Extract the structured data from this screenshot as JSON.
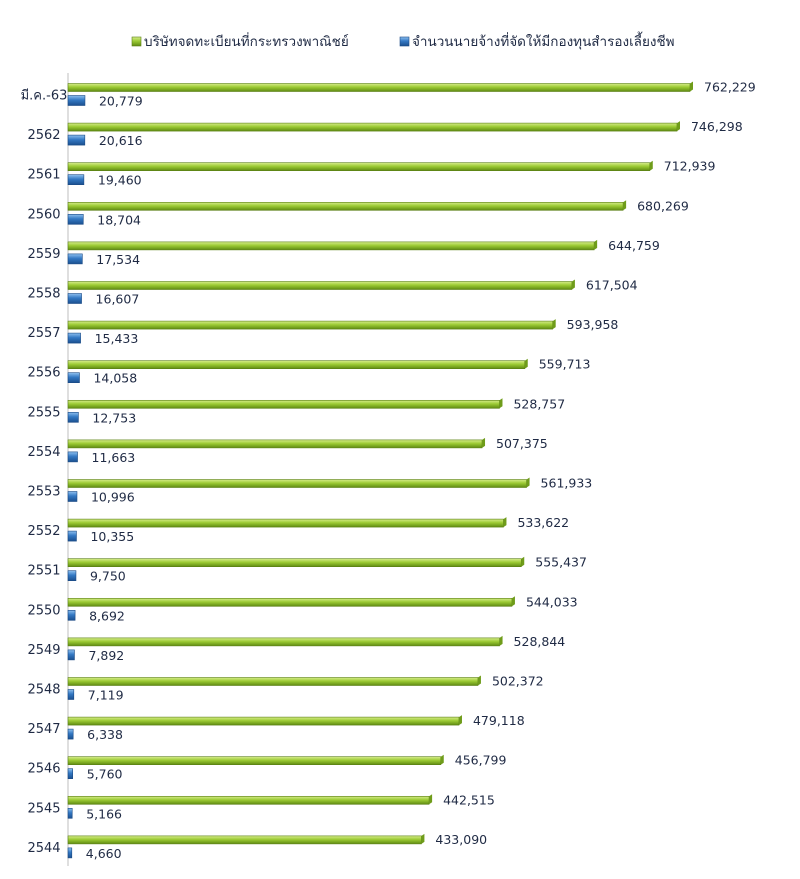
{
  "chart_data": {
    "type": "bar",
    "orientation": "horizontal",
    "title": "",
    "xlabel": "",
    "ylabel": "",
    "grid": false,
    "legend_position": "top",
    "categories": [
      "มี.ค.-63",
      "2562",
      "2561",
      "2560",
      "2559",
      "2558",
      "2557",
      "2556",
      "2555",
      "2554",
      "2553",
      "2552",
      "2551",
      "2550",
      "2549",
      "2548",
      "2547",
      "2546",
      "2545",
      "2544"
    ],
    "series": [
      {
        "name": "บริษัทจดทะเบียนที่กระทรวงพาณิชย์",
        "color": "#8dbb2a",
        "values": [
          762229,
          746298,
          712939,
          680269,
          644759,
          617504,
          593958,
          559713,
          528757,
          507375,
          561933,
          533622,
          555437,
          544033,
          528844,
          502372,
          479118,
          456799,
          442515,
          433090
        ],
        "labels": [
          "762,229",
          "746,298",
          "712,939",
          "680,269",
          "644,759",
          "617,504",
          "593,958",
          "559,713",
          "528,757",
          "507,375",
          "561,933",
          "533,622",
          "555,437",
          "544,033",
          "528,844",
          "502,372",
          "479,118",
          "456,799",
          "442,515",
          "433,090"
        ]
      },
      {
        "name": "จำนวนนายจ้างที่จัดให้มีกองทุนสำรองเลี้ยงชีพ",
        "color": "#2e6fb8",
        "values": [
          20779,
          20616,
          19460,
          18704,
          17534,
          16607,
          15433,
          14058,
          12753,
          11663,
          10996,
          10355,
          9750,
          8692,
          7892,
          7119,
          6338,
          5760,
          5166,
          4660
        ],
        "labels": [
          "20,779",
          "20,616",
          "19,460",
          "18,704",
          "17,534",
          "16,607",
          "15,433",
          "14,058",
          "12,753",
          "11,663",
          "10,996",
          "10,355",
          "9,750",
          "8,692",
          "7,892",
          "7,119",
          "6,338",
          "5,760",
          "5,166",
          "4,660"
        ]
      }
    ]
  }
}
